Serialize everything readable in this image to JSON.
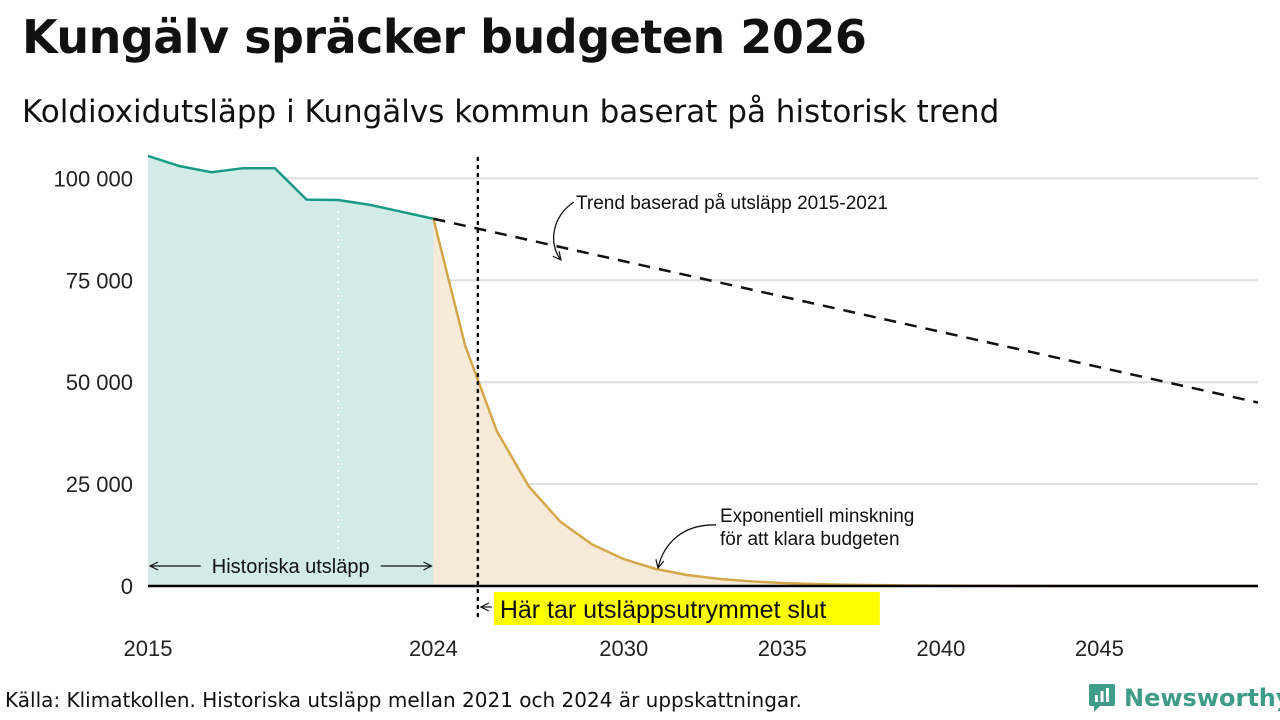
{
  "chart_data": {
    "type": "area",
    "title": "Kungälv spräcker budgeten 2026",
    "subtitle": "Koldioxidutsläpp i Kungälvs kommun baserat på historisk trend",
    "xlim": [
      2015,
      2050
    ],
    "ylim": [
      0,
      105000
    ],
    "grid": true,
    "y_ticks": [
      0,
      25000,
      50000,
      75000,
      100000
    ],
    "y_tick_labels": [
      "0",
      "25 000",
      "50 000",
      "75 000",
      "100 000"
    ],
    "x_ticks": [
      2015,
      2024,
      2030,
      2035,
      2040,
      2045
    ],
    "x_tick_labels": [
      "2015",
      "2024",
      "2030",
      "2035",
      "2040",
      "2045"
    ],
    "series": [
      {
        "name": "Historiska utsläpp",
        "color": "#1a9a86",
        "fill": "#d3ebe6",
        "x": [
          2015,
          2016,
          2017,
          2018,
          2019,
          2020,
          2021,
          2022,
          2023,
          2024
        ],
        "y": [
          105500,
          103000,
          101500,
          102500,
          102500,
          94800,
          94700,
          93500,
          91800,
          90100
        ]
      },
      {
        "name": "Exponentiell minskning för att klara budgeten",
        "color": "#d4a74a",
        "fill": "#f6ead9",
        "x": [
          2024,
          2025,
          2026,
          2027,
          2028,
          2029,
          2030,
          2031,
          2032,
          2033,
          2034,
          2035,
          2036,
          2037,
          2038,
          2039,
          2040,
          2042,
          2044,
          2046,
          2048,
          2050
        ],
        "y": [
          90100,
          59000,
          38000,
          24500,
          15800,
          10200,
          6600,
          4200,
          2700,
          1750,
          1150,
          750,
          480,
          310,
          200,
          130,
          85,
          40,
          15,
          6,
          3,
          1
        ]
      },
      {
        "name": "Trend baserad på utsläpp 2015-2021",
        "style": "dashed",
        "color": "#111111",
        "x": [
          2024,
          2050
        ],
        "y": [
          90100,
          45000
        ]
      }
    ],
    "budget_end_year": 2025.4,
    "estimate_marker_year": 2021,
    "annotations": {
      "trend_label": "Trend baserad på utsläpp 2015-2021",
      "exp_label_line1": "Exponentiell minskning",
      "exp_label_line2": "för att klara budgeten",
      "historical_label": "Historiska utsläpp",
      "budget_end_label": "Här tar utsläppsutrymmet slut"
    },
    "colors": {
      "grid": "#dddddd",
      "highlight": "#ffff00",
      "baseline": "#000000"
    }
  },
  "footer": {
    "source": "Källa: Klimatkollen. Historiska utsläpp mellan 2021 och 2024 är uppskattningar.",
    "brand": "Newsworthy",
    "brand_icon": "bar-chart-speech-bubble-icon",
    "brand_color": "#3f9c88"
  }
}
